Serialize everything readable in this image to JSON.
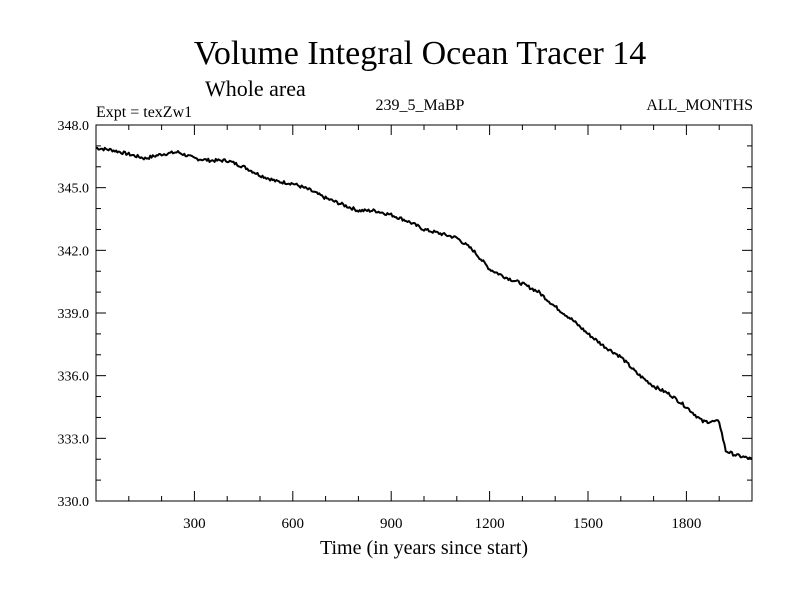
{
  "chart_data": {
    "type": "line",
    "title": "Volume Integral Ocean Tracer 14",
    "subtitle": "Whole area",
    "header_left": "Expt = texZw1",
    "header_center": "239_5_MaBP",
    "header_right": "ALL_MONTHS",
    "xlabel": "Time (in years since start)",
    "ylabel": "",
    "xlim": [
      0,
      2000
    ],
    "ylim": [
      330.0,
      348.0
    ],
    "x_ticks": [
      300,
      600,
      900,
      1200,
      1500,
      1800
    ],
    "x_tick_labels": [
      "300",
      "600",
      "900",
      "1200",
      "1500",
      "1800"
    ],
    "y_ticks": [
      330.0,
      333.0,
      336.0,
      339.0,
      342.0,
      345.0,
      348.0
    ],
    "y_tick_labels": [
      "330.0",
      "333.0",
      "336.0",
      "339.0",
      "342.0",
      "345.0",
      "348.0"
    ],
    "grid": false,
    "line_color": "#000000",
    "series": [
      {
        "x": [
          0,
          50,
          100,
          150,
          200,
          250,
          300,
          350,
          400,
          450,
          500,
          550,
          600,
          650,
          700,
          750,
          800,
          850,
          900,
          950,
          1000,
          1050,
          1100,
          1150,
          1200,
          1250,
          1300,
          1350,
          1400,
          1450,
          1500,
          1550,
          1600,
          1650,
          1700,
          1750,
          1800,
          1850,
          1880,
          1900,
          1920,
          1950,
          2000
        ],
        "y": [
          346.9,
          346.8,
          346.6,
          346.4,
          346.6,
          346.7,
          346.4,
          346.3,
          346.3,
          346.0,
          345.6,
          345.3,
          345.2,
          344.9,
          344.5,
          344.2,
          343.9,
          343.9,
          343.7,
          343.4,
          343.0,
          342.8,
          342.6,
          342.0,
          341.1,
          340.7,
          340.4,
          340.0,
          339.3,
          338.7,
          338.0,
          337.4,
          336.9,
          336.1,
          335.5,
          335.1,
          334.5,
          333.8,
          333.8,
          333.8,
          332.4,
          332.2,
          332.0
        ]
      }
    ]
  }
}
